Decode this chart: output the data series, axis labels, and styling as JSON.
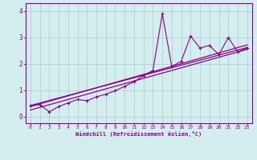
{
  "xlabel": "Windchill (Refroidissement éolien,°C)",
  "ylabel": "",
  "background_color": "#d4eef0",
  "grid_color": "#aacccc",
  "line_color": "#880088",
  "xlim": [
    -0.5,
    23.5
  ],
  "ylim": [
    -0.25,
    4.3
  ],
  "xticks": [
    0,
    1,
    2,
    3,
    4,
    5,
    6,
    7,
    8,
    9,
    10,
    11,
    12,
    13,
    14,
    15,
    16,
    17,
    18,
    19,
    20,
    21,
    22,
    23
  ],
  "yticks": [
    0,
    1,
    2,
    3,
    4
  ],
  "series1_x": [
    0,
    1,
    2,
    3,
    4,
    5,
    6,
    7,
    8,
    9,
    10,
    11,
    12,
    13,
    14,
    15,
    16,
    17,
    18,
    19,
    20,
    21,
    22,
    23
  ],
  "series1_y": [
    0.42,
    0.45,
    0.18,
    0.38,
    0.52,
    0.65,
    0.6,
    0.75,
    0.85,
    0.98,
    1.15,
    1.32,
    1.55,
    1.75,
    3.9,
    1.9,
    2.1,
    3.05,
    2.6,
    2.7,
    2.35,
    3.0,
    2.45,
    2.6
  ],
  "linear_fit1_x": [
    0,
    23
  ],
  "linear_fit1_y": [
    0.38,
    2.72
  ],
  "linear_fit2_x": [
    0,
    23
  ],
  "linear_fit2_y": [
    0.25,
    2.55
  ],
  "linear_fit3_x": [
    0,
    23
  ],
  "linear_fit3_y": [
    0.42,
    2.62
  ]
}
